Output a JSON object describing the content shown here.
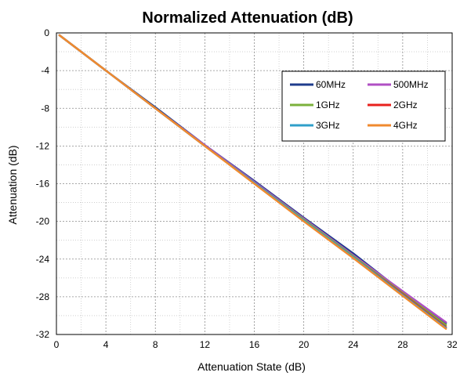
{
  "chart_data": {
    "type": "line",
    "title": "Normalized Attenuation (dB)",
    "xlabel": "Attenuation State (dB)",
    "ylabel": "Attenuation (dB)",
    "xlim": [
      0,
      32
    ],
    "ylim": [
      -32,
      0
    ],
    "xticks": [
      0,
      4,
      8,
      12,
      16,
      20,
      24,
      28,
      32
    ],
    "yticks": [
      0,
      -4,
      -8,
      -12,
      -16,
      -20,
      -24,
      -28,
      -32
    ],
    "xtick_labels": [
      "0",
      "4",
      "8",
      "12",
      "16",
      "20",
      "24",
      "28",
      "32"
    ],
    "ytick_labels": [
      "0",
      "-4",
      "-8",
      "-12",
      "-16",
      "-20",
      "-24",
      "-28",
      "-32"
    ],
    "grid": true,
    "grid_minor": true,
    "legend_position": "top-right",
    "series": [
      {
        "name": "60MHz",
        "color": "#1f3c8c",
        "x": [
          0.25,
          4,
          8,
          12,
          16,
          20,
          24,
          28,
          31.5
        ],
        "y": [
          -0.25,
          -4,
          -7.9,
          -11.9,
          -15.7,
          -19.6,
          -23.4,
          -27.5,
          -30.8
        ]
      },
      {
        "name": "500MHz",
        "color": "#b04fc4",
        "x": [
          0.25,
          4,
          8,
          12,
          16,
          20,
          24,
          28,
          31.5
        ],
        "y": [
          -0.25,
          -4,
          -8,
          -11.9,
          -15.8,
          -19.7,
          -23.6,
          -27.4,
          -30.7
        ]
      },
      {
        "name": "1GHz",
        "color": "#7bb13b",
        "x": [
          0.25,
          4,
          8,
          12,
          16,
          20,
          24,
          28,
          31.5
        ],
        "y": [
          -0.25,
          -4,
          -8,
          -12,
          -15.9,
          -19.8,
          -23.7,
          -27.6,
          -31
        ]
      },
      {
        "name": "2GHz",
        "color": "#e8211d",
        "x": [
          0.25,
          4,
          8,
          12,
          16,
          20,
          24,
          28,
          31.5
        ],
        "y": [
          -0.25,
          -4,
          -8,
          -12,
          -15.9,
          -19.9,
          -23.8,
          -27.7,
          -31.2
        ]
      },
      {
        "name": "3GHz",
        "color": "#2f9fc9",
        "x": [
          0.25,
          4,
          8,
          12,
          16,
          20,
          24,
          28,
          31.5
        ],
        "y": [
          -0.25,
          -4,
          -8,
          -12,
          -15.9,
          -19.9,
          -23.8,
          -27.8,
          -31.3
        ]
      },
      {
        "name": "4GHz",
        "color": "#f08a2e",
        "x": [
          0.25,
          4,
          8,
          12,
          16,
          20,
          24,
          28,
          31.5
        ],
        "y": [
          -0.25,
          -4,
          -8,
          -12,
          -16,
          -20,
          -23.9,
          -27.9,
          -31.4
        ]
      }
    ]
  }
}
